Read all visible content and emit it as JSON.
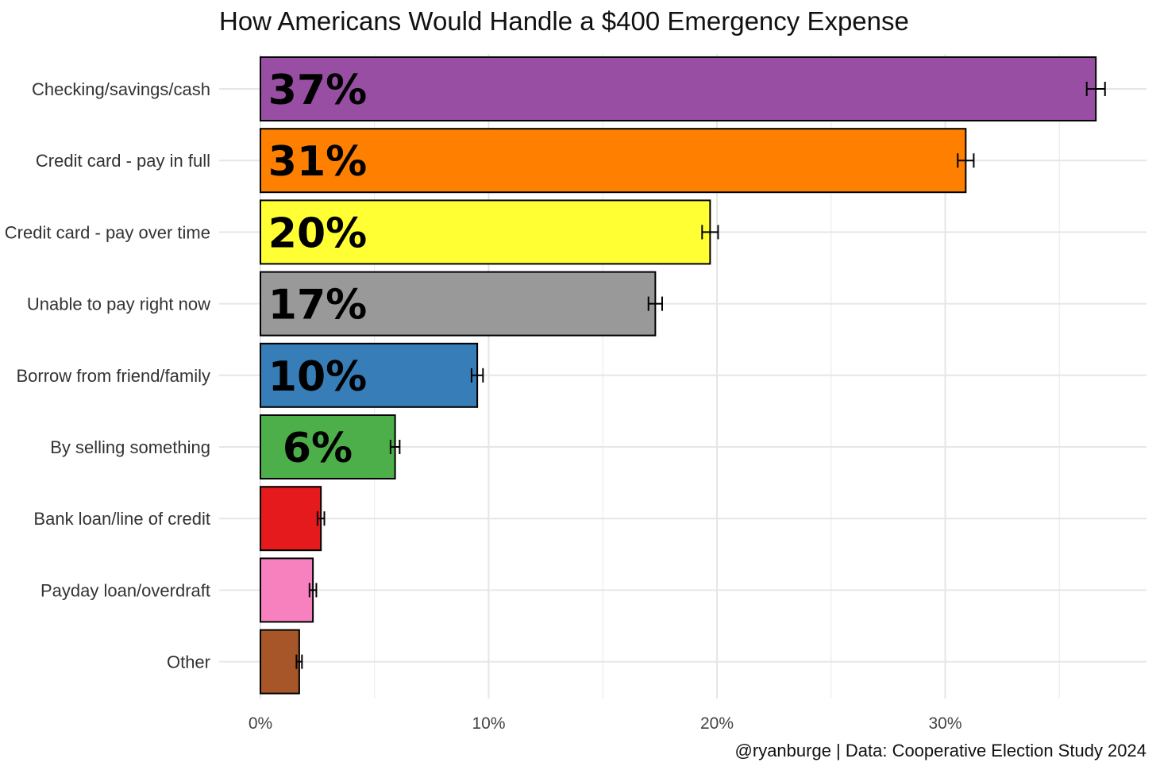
{
  "chart_data": {
    "type": "bar",
    "orientation": "horizontal",
    "title": "How Americans Would Handle a $400 Emergency Expense",
    "caption": "@ryanburge | Data: Cooperative Election Study 2024",
    "categories": [
      "Checking/savings/cash",
      "Credit card - pay in full",
      "Credit card - pay over time",
      "Unable to pay right now",
      "Borrow from friend/family",
      "By selling something",
      "Bank loan/line of credit",
      "Payday loan/overdraft",
      "Other"
    ],
    "values": [
      36.6,
      30.9,
      19.7,
      17.3,
      9.5,
      5.9,
      2.65,
      2.3,
      1.7
    ],
    "errors": [
      0.4,
      0.35,
      0.35,
      0.3,
      0.25,
      0.2,
      0.15,
      0.15,
      0.12
    ],
    "value_labels": [
      "37%",
      "31%",
      "20%",
      "17%",
      "10%",
      "6%",
      "",
      "",
      ""
    ],
    "colors": [
      "#984EA3",
      "#FF7F00",
      "#FFFF33",
      "#999999",
      "#377EB8",
      "#4DAF4A",
      "#E41A1C",
      "#F781BF",
      "#A65628"
    ],
    "xlim": [
      0,
      38
    ],
    "x_ticks": [
      0,
      10,
      20,
      30
    ],
    "x_tick_labels": [
      "0%",
      "10%",
      "20%",
      "30%"
    ],
    "xlabel": "",
    "ylabel": "",
    "grid": true,
    "legend": "none"
  }
}
